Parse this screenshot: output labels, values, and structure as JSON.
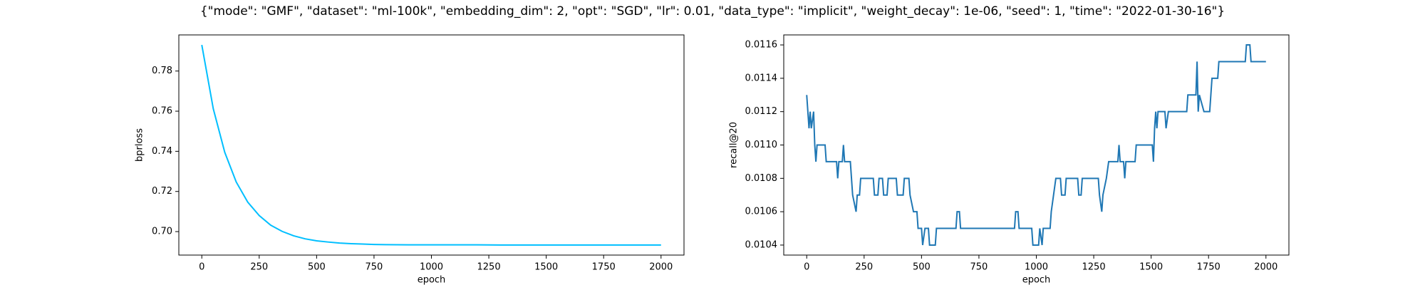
{
  "title": "{\"mode\": \"GMF\", \"dataset\": \"ml-100k\", \"embedding_dim\": 2, \"opt\": \"SGD\", \"lr\": 0.01, \"data_type\": \"implicit\", \"weight_decay\": 1e-06, \"seed\": 1, \"time\": \"2022-01-30-16\"}",
  "chart_data": [
    {
      "type": "line",
      "xlabel": "epoch",
      "ylabel": "bprloss",
      "color": "#00bfff",
      "x": [
        0,
        50,
        100,
        150,
        200,
        250,
        300,
        350,
        400,
        450,
        500,
        550,
        600,
        650,
        700,
        750,
        800,
        900,
        1000,
        1100,
        1200,
        1300,
        1400,
        1500,
        1600,
        1700,
        1800,
        1900,
        2000
      ],
      "values": [
        0.793,
        0.7612,
        0.7395,
        0.7247,
        0.7147,
        0.708,
        0.7032,
        0.7001,
        0.6979,
        0.6964,
        0.6954,
        0.6948,
        0.6943,
        0.694,
        0.6938,
        0.6936,
        0.6935,
        0.6934,
        0.6934,
        0.6934,
        0.6934,
        0.6933,
        0.6933,
        0.6933,
        0.6933,
        0.6933,
        0.6933,
        0.6933,
        0.6933
      ],
      "xlim": [
        -100,
        2100
      ],
      "xticks": [
        0,
        250,
        500,
        750,
        1000,
        1250,
        1500,
        1750,
        2000
      ],
      "ylim": [
        0.6883,
        0.798
      ],
      "yticks": [
        {
          "value": 0.7,
          "label": "0.70"
        },
        0.72,
        0.74,
        0.76,
        0.78
      ]
    },
    {
      "type": "line",
      "xlabel": "epoch",
      "ylabel": "recall@20",
      "color": "#1f77b4",
      "x": [
        0,
        5,
        10,
        15,
        20,
        30,
        35,
        40,
        45,
        80,
        85,
        130,
        135,
        140,
        155,
        160,
        165,
        190,
        195,
        200,
        215,
        220,
        230,
        235,
        290,
        295,
        310,
        315,
        330,
        335,
        350,
        355,
        390,
        395,
        420,
        425,
        445,
        450,
        465,
        480,
        485,
        500,
        505,
        515,
        530,
        535,
        560,
        565,
        650,
        655,
        665,
        670,
        905,
        910,
        920,
        925,
        980,
        985,
        1010,
        1015,
        1025,
        1030,
        1060,
        1065,
        1075,
        1085,
        1105,
        1110,
        1125,
        1130,
        1180,
        1185,
        1195,
        1200,
        1270,
        1275,
        1285,
        1290,
        1305,
        1315,
        1355,
        1360,
        1365,
        1380,
        1385,
        1390,
        1430,
        1435,
        1505,
        1510,
        1515,
        1520,
        1525,
        1530,
        1560,
        1565,
        1575,
        1655,
        1660,
        1695,
        1700,
        1705,
        1710,
        1730,
        1755,
        1760,
        1765,
        1790,
        1795,
        1910,
        1915,
        1930,
        1935,
        2000
      ],
      "values": [
        0.0113,
        0.0112,
        0.0111,
        0.0112,
        0.0111,
        0.0112,
        0.011,
        0.0109,
        0.011,
        0.011,
        0.0109,
        0.0109,
        0.0108,
        0.0109,
        0.0109,
        0.011,
        0.0109,
        0.0109,
        0.0108,
        0.0107,
        0.0106,
        0.0107,
        0.0107,
        0.0108,
        0.0108,
        0.0107,
        0.0107,
        0.0108,
        0.0108,
        0.0107,
        0.0107,
        0.0108,
        0.0108,
        0.0107,
        0.0107,
        0.0108,
        0.0108,
        0.0107,
        0.0106,
        0.0106,
        0.0105,
        0.0105,
        0.0104,
        0.0105,
        0.0105,
        0.0104,
        0.0104,
        0.0105,
        0.0105,
        0.0106,
        0.0106,
        0.0105,
        0.0105,
        0.0106,
        0.0106,
        0.0105,
        0.0105,
        0.0104,
        0.0104,
        0.0105,
        0.0104,
        0.0105,
        0.0105,
        0.0106,
        0.0107,
        0.0108,
        0.0108,
        0.0107,
        0.0107,
        0.0108,
        0.0108,
        0.0107,
        0.0107,
        0.0108,
        0.0108,
        0.0107,
        0.0106,
        0.0107,
        0.0108,
        0.0109,
        0.0109,
        0.011,
        0.0109,
        0.0109,
        0.0108,
        0.0109,
        0.0109,
        0.011,
        0.011,
        0.0109,
        0.0111,
        0.0112,
        0.0111,
        0.0112,
        0.0112,
        0.0111,
        0.0112,
        0.0112,
        0.0113,
        0.0113,
        0.0115,
        0.0112,
        0.0113,
        0.0112,
        0.0112,
        0.0113,
        0.0114,
        0.0114,
        0.0115,
        0.0115,
        0.0116,
        0.0116,
        0.0115,
        0.0115
      ],
      "xlim": [
        -100,
        2100
      ],
      "xticks": [
        0,
        250,
        500,
        750,
        1000,
        1250,
        1500,
        1750,
        2000
      ],
      "ylim": [
        0.01034,
        0.01166
      ],
      "yticks": [
        0.0104,
        0.0106,
        0.0108,
        {
          "value": 0.011,
          "label": "0.0110"
        },
        0.0112,
        0.0114,
        0.0116
      ]
    }
  ]
}
